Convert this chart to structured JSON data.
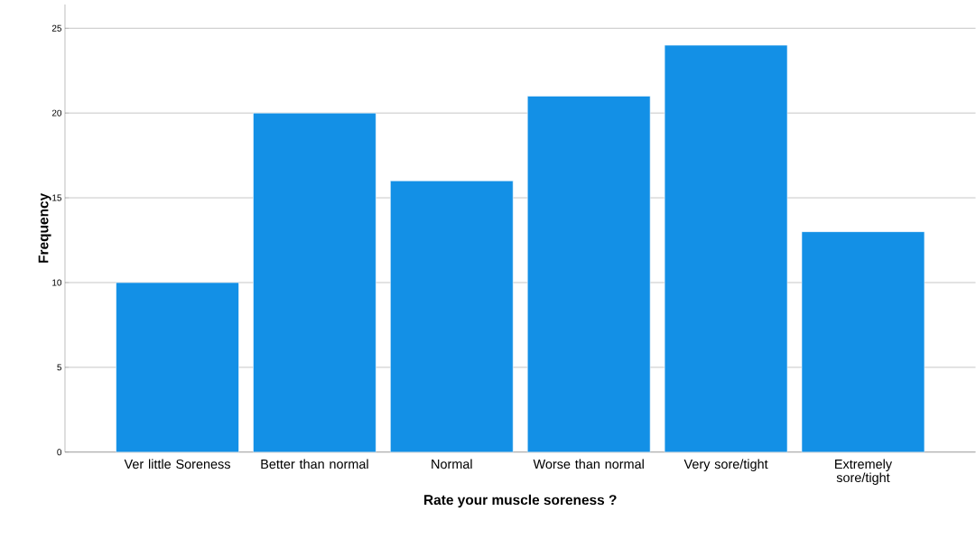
{
  "chart_data": {
    "type": "bar",
    "xlabel": "Rate your muscle soreness ?",
    "ylabel": "Frequency",
    "categories": [
      "Ver little Soreness",
      "Better than normal",
      "Normal",
      "Worse than normal",
      "Very sore/tight",
      "Extremely sore/tight"
    ],
    "values": [
      10,
      20,
      16,
      21,
      24,
      13
    ],
    "color": "#1390e6",
    "ylim": [
      0,
      26.4
    ],
    "yticks": [
      0,
      5,
      10,
      15,
      20,
      25
    ],
    "grid": "y"
  }
}
